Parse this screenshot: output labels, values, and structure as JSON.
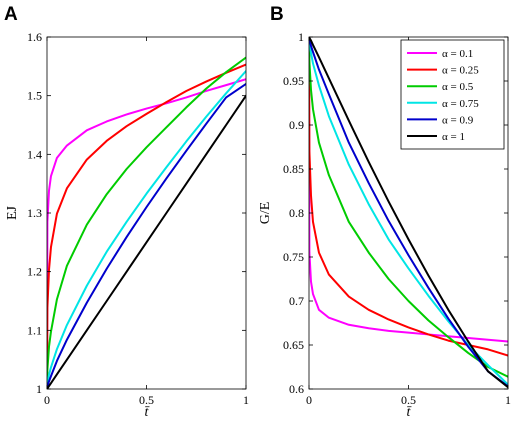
{
  "chart_data": [
    {
      "type": "line",
      "panel_letter": "A",
      "xlabel": "t̄",
      "ylabel": "EJ",
      "xlim": [
        0,
        1
      ],
      "ylim": [
        1,
        1.6
      ],
      "xticks": [
        0,
        0.5,
        1
      ],
      "xtick_labels": [
        "0",
        "0.5",
        "1"
      ],
      "yticks": [
        1,
        1.1,
        1.2,
        1.3,
        1.4,
        1.5,
        1.6
      ],
      "ytick_labels": [
        "1",
        "1.1",
        "1.2",
        "1.3",
        "1.4",
        "1.5",
        "1.6"
      ],
      "grid": false,
      "x": [
        0,
        0.002,
        0.01,
        0.02,
        0.05,
        0.1,
        0.2,
        0.3,
        0.4,
        0.5,
        0.6,
        0.7,
        0.8,
        0.9,
        1.0
      ],
      "series": [
        {
          "name": "α = 0.1",
          "color": "#ff00ff",
          "values": [
            1.0,
            1.285,
            1.338,
            1.363,
            1.394,
            1.415,
            1.441,
            1.456,
            1.468,
            1.478,
            1.487,
            1.497,
            1.508,
            1.518,
            1.528
          ]
        },
        {
          "name": "α = 0.25",
          "color": "#ff0000",
          "values": [
            1.0,
            1.138,
            1.203,
            1.242,
            1.299,
            1.342,
            1.391,
            1.423,
            1.448,
            1.469,
            1.489,
            1.508,
            1.524,
            1.539,
            1.553
          ]
        },
        {
          "name": "α = 0.5",
          "color": "#00cc00",
          "values": [
            1.0,
            1.033,
            1.072,
            1.098,
            1.153,
            1.21,
            1.28,
            1.332,
            1.375,
            1.412,
            1.446,
            1.48,
            1.512,
            1.54,
            1.565
          ]
        },
        {
          "name": "α = 0.75",
          "color": "#00e5e5",
          "values": [
            1.0,
            1.009,
            1.024,
            1.037,
            1.068,
            1.109,
            1.176,
            1.234,
            1.285,
            1.333,
            1.378,
            1.422,
            1.464,
            1.504,
            1.542
          ]
        },
        {
          "name": "α = 0.9",
          "color": "#0000cc",
          "values": [
            1.0,
            1.004,
            1.013,
            1.022,
            1.048,
            1.084,
            1.147,
            1.205,
            1.259,
            1.31,
            1.359,
            1.406,
            1.452,
            1.497,
            1.52
          ]
        },
        {
          "name": "α = 1",
          "color": "#000000",
          "values": [
            1.0,
            1.001,
            1.005,
            1.01,
            1.025,
            1.05,
            1.1,
            1.15,
            1.2,
            1.25,
            1.3,
            1.35,
            1.4,
            1.45,
            1.5
          ]
        }
      ]
    },
    {
      "type": "line",
      "panel_letter": "B",
      "xlabel": "t̄",
      "ylabel": "G/E",
      "xlim": [
        0,
        1
      ],
      "ylim": [
        0.6,
        1
      ],
      "xticks": [
        0,
        0.5,
        1
      ],
      "xtick_labels": [
        "0",
        "0.5",
        "1"
      ],
      "yticks": [
        0.6,
        0.65,
        0.7,
        0.75,
        0.8,
        0.85,
        0.9,
        0.95,
        1
      ],
      "ytick_labels": [
        "0.6",
        "0.65",
        "0.7",
        "0.75",
        "0.8",
        "0.85",
        "0.9",
        "0.95",
        "1"
      ],
      "grid": false,
      "legend": "top-right",
      "x": [
        0,
        0.002,
        0.01,
        0.02,
        0.05,
        0.1,
        0.2,
        0.3,
        0.4,
        0.5,
        0.6,
        0.7,
        0.8,
        0.9,
        1.0
      ],
      "series": [
        {
          "name": "α = 0.1",
          "color": "#ff00ff",
          "values": [
            1.0,
            0.755,
            0.722,
            0.708,
            0.69,
            0.681,
            0.673,
            0.669,
            0.666,
            0.664,
            0.662,
            0.66,
            0.658,
            0.656,
            0.654
          ]
        },
        {
          "name": "α = 0.25",
          "color": "#ff0000",
          "values": [
            1.0,
            0.87,
            0.82,
            0.79,
            0.755,
            0.73,
            0.705,
            0.69,
            0.679,
            0.67,
            0.662,
            0.655,
            0.65,
            0.645,
            0.638
          ]
        },
        {
          "name": "α = 0.5",
          "color": "#00cc00",
          "values": [
            1.0,
            0.972,
            0.94,
            0.918,
            0.88,
            0.843,
            0.79,
            0.755,
            0.725,
            0.7,
            0.678,
            0.659,
            0.641,
            0.625,
            0.614
          ]
        },
        {
          "name": "α = 0.75",
          "color": "#00e5e5",
          "values": [
            1.0,
            0.994,
            0.982,
            0.97,
            0.945,
            0.91,
            0.855,
            0.81,
            0.77,
            0.737,
            0.706,
            0.677,
            0.65,
            0.627,
            0.605
          ]
        },
        {
          "name": "α = 0.9",
          "color": "#0000cc",
          "values": [
            1.0,
            0.998,
            0.99,
            0.983,
            0.963,
            0.935,
            0.88,
            0.834,
            0.791,
            0.752,
            0.715,
            0.68,
            0.648,
            0.62,
            0.603
          ]
        },
        {
          "name": "α = 1",
          "color": "#000000",
          "values": [
            1.0,
            0.999,
            0.996,
            0.991,
            0.977,
            0.953,
            0.905,
            0.858,
            0.813,
            0.77,
            0.729,
            0.69,
            0.654,
            0.62,
            0.602
          ]
        }
      ]
    }
  ]
}
